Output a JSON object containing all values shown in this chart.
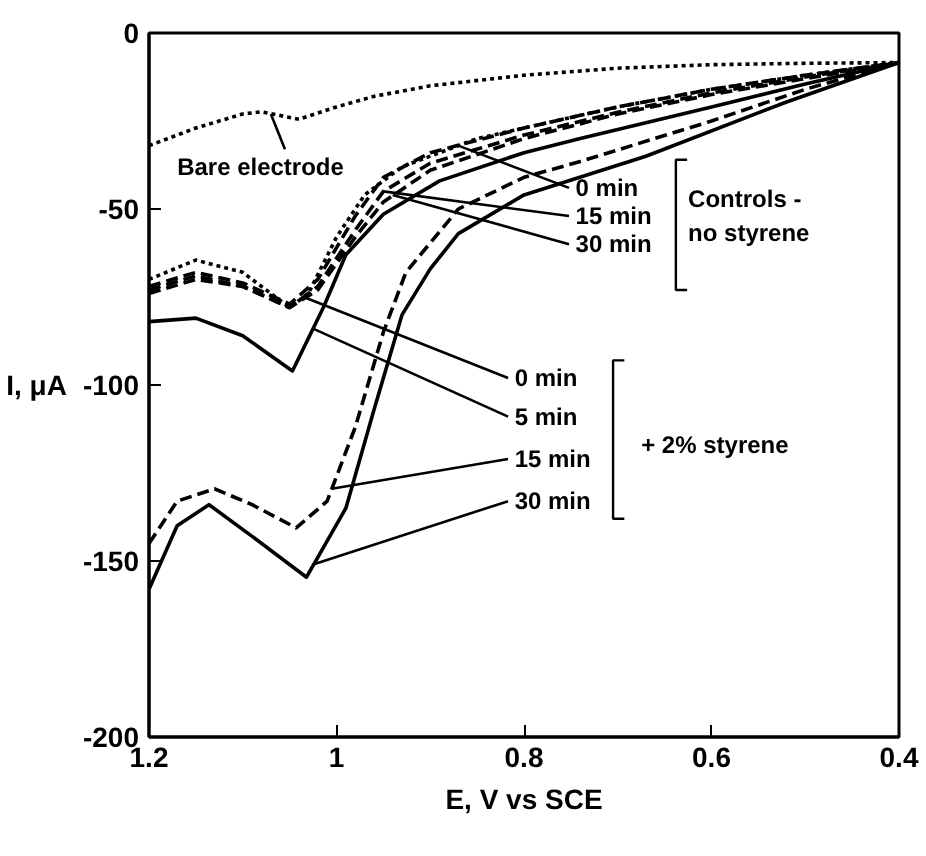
{
  "chart_data": {
    "type": "line",
    "xlabel": "E, V vs SCE",
    "ylabel": "I, μA",
    "xlim": [
      1.2,
      0.4
    ],
    "ylim": [
      -200,
      0
    ],
    "xticks": [
      1.2,
      1,
      0.8,
      0.6,
      0.4
    ],
    "yticks": [
      -200,
      -150,
      -100,
      -50,
      0
    ],
    "grid": false,
    "marker": "none",
    "series": [
      {
        "color": "#000000",
        "line_style": "dotted",
        "x": [
          1.2,
          1.15,
          1.1,
          1.08,
          1.04,
          1.0,
          0.96,
          0.9,
          0.8,
          0.7,
          0.6,
          0.5,
          0.4
        ],
        "values": [
          -32,
          -27,
          -23,
          -22.4,
          -24.5,
          -21,
          -18,
          -15,
          -12,
          -10,
          -9,
          -8.6,
          -8.4
        ]
      },
      {
        "color": "#000000",
        "line_style": "dashed",
        "x": [
          1.2,
          1.15,
          1.1,
          1.05,
          1.02,
          0.98,
          0.95,
          0.9,
          0.8,
          0.7,
          0.6,
          0.5,
          0.4
        ],
        "values": [
          -72,
          -68,
          -71,
          -77,
          -70,
          -52,
          -41,
          -34,
          -27,
          -21,
          -16,
          -12,
          -8.4
        ]
      },
      {
        "color": "#000000",
        "line_style": "dashed",
        "x": [
          1.2,
          1.15,
          1.1,
          1.05,
          1.02,
          0.98,
          0.95,
          0.9,
          0.8,
          0.7,
          0.6,
          0.5,
          0.4
        ],
        "values": [
          -73,
          -69,
          -72,
          -78,
          -72,
          -56,
          -45,
          -37,
          -29,
          -22.5,
          -17,
          -12.5,
          -8.4
        ]
      },
      {
        "color": "#000000",
        "line_style": "dashed",
        "x": [
          1.2,
          1.15,
          1.1,
          1.05,
          1.02,
          0.98,
          0.95,
          0.9,
          0.8,
          0.7,
          0.6,
          0.5,
          0.4
        ],
        "values": [
          -74,
          -70,
          -72,
          -78,
          -73,
          -58,
          -48,
          -39,
          -30,
          -23,
          -17.5,
          -13,
          -8.4
        ]
      },
      {
        "color": "#000000",
        "line_style": "dotted",
        "x": [
          1.2,
          1.15,
          1.1,
          1.05,
          1.03,
          1.0,
          0.97,
          0.93,
          0.85,
          0.7,
          0.6,
          0.5,
          0.4
        ],
        "values": [
          -70,
          -64.5,
          -68,
          -78,
          -74,
          -58,
          -46,
          -38,
          -30,
          -21,
          -16,
          -12,
          -8.4
        ]
      },
      {
        "color": "#000000",
        "line_style": "solid",
        "x": [
          1.2,
          1.15,
          1.1,
          1.047,
          1.014,
          0.99,
          0.95,
          0.89,
          0.8,
          0.74,
          0.6,
          0.5,
          0.4
        ],
        "values": [
          -82,
          -81,
          -86,
          -96,
          -78,
          -63,
          -51.5,
          -42,
          -34,
          -30,
          -21,
          -14.5,
          -8.4
        ]
      },
      {
        "color": "#000000",
        "line_style": "dashed",
        "x": [
          1.2,
          1.17,
          1.13,
          1.09,
          1.043,
          1.01,
          0.98,
          0.95,
          0.926,
          0.87,
          0.8,
          0.74,
          0.6,
          0.5,
          0.4
        ],
        "values": [
          -145,
          -133,
          -129.5,
          -134,
          -140.6,
          -133,
          -112,
          -85,
          -68,
          -50,
          -41,
          -36.5,
          -25,
          -16,
          -8.4
        ]
      },
      {
        "color": "#000000",
        "line_style": "solid",
        "x": [
          1.2,
          1.17,
          1.136,
          1.09,
          1.032,
          0.99,
          0.96,
          0.93,
          0.9,
          0.87,
          0.8,
          0.67,
          0.52,
          0.4
        ],
        "values": [
          -158,
          -140,
          -134,
          -143,
          -154.6,
          -135,
          -107,
          -80,
          -67,
          -57,
          -46,
          -35,
          -19.6,
          -8.4
        ]
      }
    ],
    "annotations": [
      {
        "text": "Bare electrode",
        "x": 1.07,
        "y": -23
      },
      {
        "text": "0 min",
        "x": 0.87,
        "y": -32
      },
      {
        "text": "15 min",
        "x": 0.95,
        "y": -45
      },
      {
        "text": "30 min",
        "x": 0.94,
        "y": -46
      },
      {
        "text": "0 min",
        "x": 1.035,
        "y": -75
      },
      {
        "text": "5 min",
        "x": 1.025,
        "y": -84
      },
      {
        "text": "15 min",
        "x": 1.005,
        "y": -129.5
      },
      {
        "text": "30 min",
        "x": 1.025,
        "y": -151
      },
      "Controls -\nno styrene",
      "+ 2% styrene"
    ]
  }
}
